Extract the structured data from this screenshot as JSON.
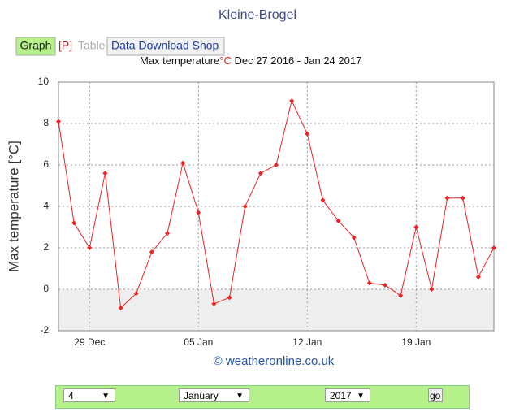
{
  "header": {
    "title": "Kleine-Brogel",
    "tabs": [
      "Graph",
      "[P]",
      "Table",
      "Data Download Shop"
    ]
  },
  "chart_data": {
    "type": "line",
    "title_parts": [
      "Max temperature",
      "°C",
      " Dec 27 2016 - Jan 24 2017"
    ],
    "y_label": "Max temperature [°C]",
    "credit": "© weatheronline.co.uk",
    "categories": [
      null,
      null,
      "29 Dec",
      null,
      null,
      null,
      null,
      null,
      null,
      "05 Jan",
      null,
      null,
      null,
      null,
      null,
      null,
      "12 Jan",
      null,
      null,
      null,
      null,
      null,
      null,
      "19 Jan",
      null,
      null,
      null,
      null,
      null
    ],
    "series": [
      {
        "name": "Max temperature",
        "color": "#ee2222",
        "values": [
          8.1,
          3.2,
          2.0,
          5.6,
          -0.9,
          -0.2,
          1.8,
          2.7,
          6.1,
          3.7,
          -0.7,
          -0.4,
          4.0,
          5.6,
          6.0,
          9.1,
          7.5,
          4.3,
          3.3,
          2.5,
          0.3,
          0.2,
          -0.3,
          3.0,
          0.0,
          4.4,
          4.4,
          0.6,
          2.0
        ]
      }
    ],
    "ylim": [
      -2,
      10
    ],
    "yticks": [
      -2,
      0,
      2,
      4,
      6,
      8,
      10
    ],
    "grid": true
  },
  "form": {
    "day": "4",
    "month": "January",
    "year": "2017",
    "button": "go"
  }
}
